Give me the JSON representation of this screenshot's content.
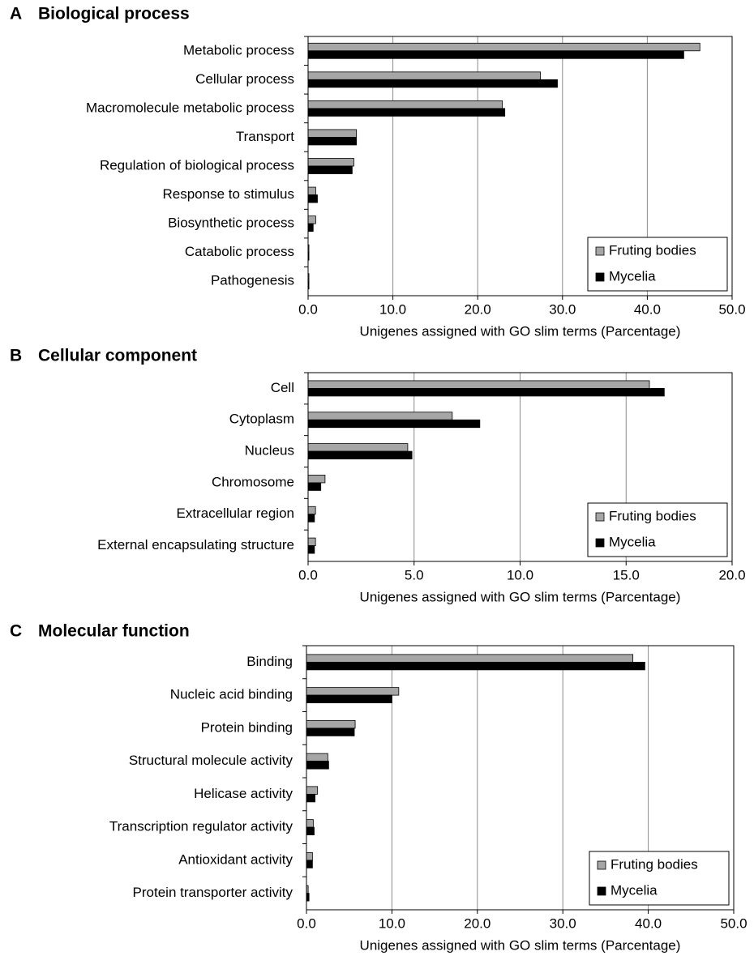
{
  "chart_data": [
    {
      "type": "bar",
      "label": "A",
      "title": "Biological process",
      "xlabel": "Unigenes assigned with GO slim terms (Parcentage)",
      "categories": [
        "Metabolic process",
        "Cellular process",
        "Macromolecule metabolic process",
        "Transport",
        "Regulation of biological process",
        "Response to stimulus",
        "Biosynthetic process",
        "Catabolic process",
        "Pathogenesis"
      ],
      "series": [
        {
          "name": "Fruting bodies",
          "color": "#a6a6a6",
          "values": [
            46.2,
            27.4,
            22.9,
            5.7,
            5.4,
            0.9,
            0.9,
            0.1,
            0.1
          ]
        },
        {
          "name": "Mycelia",
          "color": "#000000",
          "values": [
            44.3,
            29.4,
            23.2,
            5.7,
            5.2,
            1.1,
            0.6,
            0.1,
            0.1
          ]
        }
      ],
      "xlim": [
        0,
        50
      ],
      "xticks": [
        {
          "value": 0,
          "label": "0.0"
        },
        {
          "value": 10,
          "label": "10.0"
        },
        {
          "value": 20,
          "label": "20.0"
        },
        {
          "value": 30,
          "label": "30.0"
        },
        {
          "value": 40,
          "label": "40.0"
        },
        {
          "value": 50,
          "label": "50.0"
        }
      ],
      "grid": true,
      "legend": "lower right",
      "orientation": "horizontal"
    },
    {
      "type": "bar",
      "label": "B",
      "title": "Cellular component",
      "xlabel": "Unigenes assigned with GO slim terms (Parcentage)",
      "categories": [
        "Cell",
        "Cytoplasm",
        "Nucleus",
        "Chromosome",
        "Extracellular region",
        "External encapsulating structure"
      ],
      "series": [
        {
          "name": "Fruting bodies",
          "color": "#a6a6a6",
          "values": [
            16.1,
            6.8,
            4.7,
            0.8,
            0.35,
            0.35
          ]
        },
        {
          "name": "Mycelia",
          "color": "#000000",
          "values": [
            16.8,
            8.1,
            4.9,
            0.6,
            0.3,
            0.3
          ]
        }
      ],
      "xlim": [
        0,
        20
      ],
      "xticks": [
        {
          "value": 0,
          "label": "0.0"
        },
        {
          "value": 5,
          "label": "5.0"
        },
        {
          "value": 10,
          "label": "10.0"
        },
        {
          "value": 15,
          "label": "15.0"
        },
        {
          "value": 20,
          "label": "20.0"
        }
      ],
      "grid": true,
      "legend": "lower right",
      "orientation": "horizontal"
    },
    {
      "type": "bar",
      "label": "C",
      "title": "Molecular function",
      "xlabel": "Unigenes assigned with GO slim terms (Parcentage)",
      "categories": [
        "Binding",
        "Nucleic acid binding",
        "Protein binding",
        "Structural molecule activity",
        "Helicase activity",
        "Transcription regulator activity",
        "Antioxidant activity",
        "Protein transporter activity"
      ],
      "series": [
        {
          "name": "Fruting bodies",
          "color": "#a6a6a6",
          "values": [
            38.2,
            10.8,
            5.7,
            2.5,
            1.3,
            0.8,
            0.7,
            0.2
          ]
        },
        {
          "name": "Mycelia",
          "color": "#000000",
          "values": [
            39.6,
            10.0,
            5.6,
            2.6,
            1.0,
            0.9,
            0.7,
            0.3
          ]
        }
      ],
      "xlim": [
        0,
        50
      ],
      "xticks": [
        {
          "value": 0,
          "label": "0.0"
        },
        {
          "value": 10,
          "label": "10.0"
        },
        {
          "value": 20,
          "label": "20.0"
        },
        {
          "value": 30,
          "label": "30.0"
        },
        {
          "value": 40,
          "label": "40.0"
        },
        {
          "value": 50,
          "label": "50.0"
        }
      ],
      "grid": true,
      "legend": "lower right",
      "orientation": "horizontal"
    }
  ]
}
